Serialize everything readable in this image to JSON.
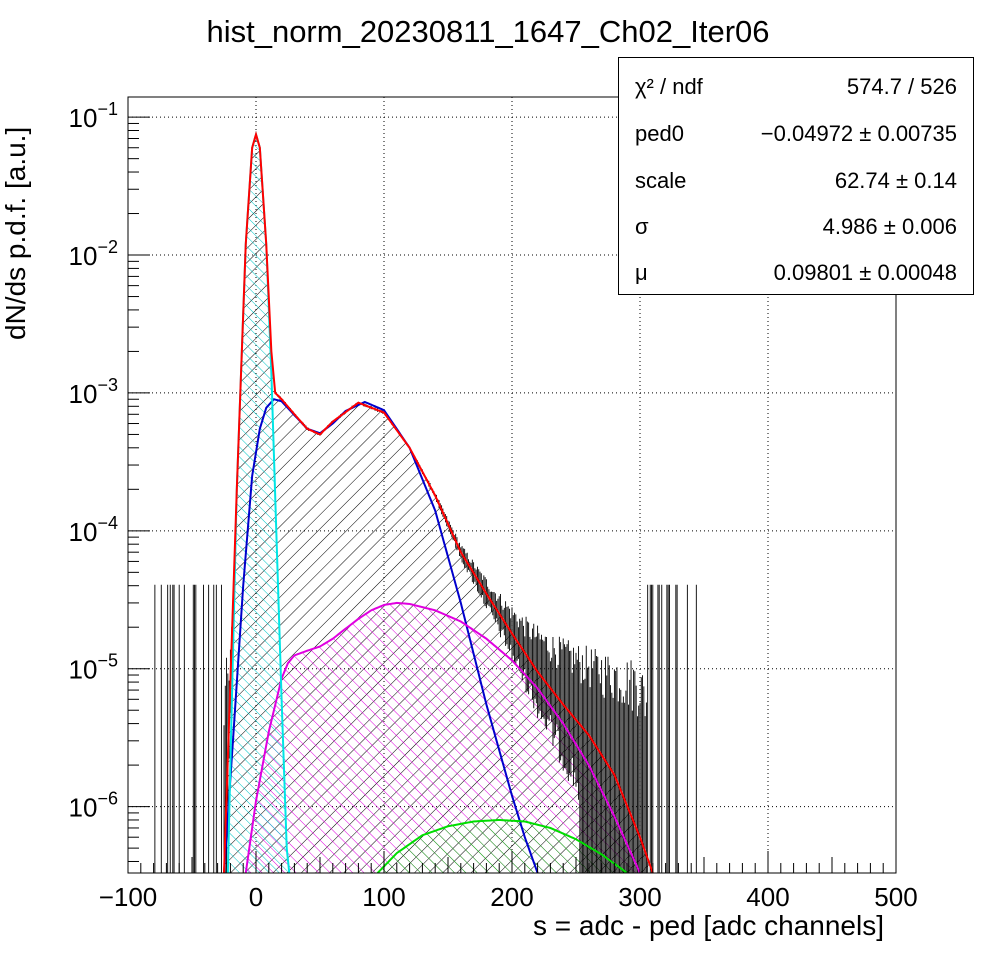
{
  "chart_data": {
    "type": "line",
    "title": "hist_norm_20230811_1647_Ch02_Iter06",
    "xlabel": "s = adc - ped [adc channels]",
    "ylabel": "dN/ds p.d.f. [a.u.]",
    "xlim": [
      -100,
      500
    ],
    "ylim": [
      3.3e-07,
      0.14
    ],
    "yscale": "log",
    "grid": true,
    "x_ticks": [
      "−100",
      "0",
      "100",
      "200",
      "300",
      "400",
      "500"
    ],
    "y_ticks": [
      {
        "base": "10",
        "exp": "−1"
      },
      {
        "base": "10",
        "exp": "−2"
      },
      {
        "base": "10",
        "exp": "−3"
      },
      {
        "base": "10",
        "exp": "−4"
      },
      {
        "base": "10",
        "exp": "−5"
      },
      {
        "base": "10",
        "exp": "−6"
      }
    ],
    "series": [
      {
        "color": "#ff0000",
        "x": [
          -25,
          -15,
          -8,
          -3,
          0,
          3,
          8,
          12,
          15,
          20,
          30,
          40,
          50,
          60,
          80,
          100,
          120,
          140,
          160,
          180,
          200,
          220,
          240,
          260,
          280,
          300,
          310
        ],
        "y": [
          3.3e-07,
          0.0002,
          0.012,
          0.06,
          0.075,
          0.06,
          0.012,
          0.002,
          0.001,
          0.0009,
          0.0007,
          0.00055,
          0.0005,
          0.00062,
          0.00085,
          0.00072,
          0.0004,
          0.00018,
          7e-05,
          3.5e-05,
          1.8e-05,
          9.5e-06,
          5.5e-06,
          3.3e-06,
          1.7e-06,
          6e-07,
          3.3e-07
        ]
      },
      {
        "color": "#00e5e5",
        "x": [
          -22,
          -15,
          -8,
          -3,
          0,
          3,
          8,
          12,
          16,
          20,
          24,
          26
        ],
        "y": [
          3.3e-07,
          0.0002,
          0.012,
          0.06,
          0.075,
          0.06,
          0.012,
          0.0014,
          9e-05,
          6e-06,
          5e-07,
          3.3e-07
        ]
      },
      {
        "color": "#0000cc",
        "x": [
          -25,
          -18,
          -10,
          -3,
          3,
          8,
          14,
          20,
          30,
          40,
          50,
          60,
          70,
          85,
          100,
          120,
          140,
          160,
          180,
          200,
          210,
          220
        ],
        "y": [
          3.3e-07,
          3e-06,
          4e-05,
          0.00025,
          0.00055,
          0.00078,
          0.0009,
          0.00087,
          0.00069,
          0.00055,
          0.00051,
          0.0006,
          0.00074,
          0.00086,
          0.00075,
          0.0004,
          0.00014,
          3e-05,
          5.5e-06,
          1.2e-06,
          6e-07,
          3.3e-07
        ]
      },
      {
        "color": "#e000e0",
        "x": [
          -8,
          0,
          10,
          20,
          25,
          30,
          40,
          50,
          60,
          70,
          80,
          90,
          100,
          110,
          120,
          140,
          160,
          180,
          200,
          220,
          240,
          260,
          280,
          300
        ],
        "y": [
          3.3e-07,
          1.1e-06,
          3.5e-06,
          8.5e-06,
          1.1e-05,
          1.25e-05,
          1.35e-05,
          1.45e-05,
          1.65e-05,
          1.95e-05,
          2.3e-05,
          2.65e-05,
          2.9e-05,
          3e-05,
          2.95e-05,
          2.65e-05,
          2.2e-05,
          1.65e-05,
          1.15e-05,
          7.2e-06,
          4e-06,
          2e-06,
          8.5e-07,
          3.3e-07
        ]
      },
      {
        "color": "#00dd00",
        "x": [
          95,
          110,
          130,
          150,
          170,
          190,
          210,
          230,
          250,
          270,
          290
        ],
        "y": [
          3.3e-07,
          4.6e-07,
          6.2e-07,
          7.2e-07,
          7.8e-07,
          8e-07,
          7.8e-07,
          7e-07,
          5.8e-07,
          4.5e-07,
          3.3e-07
        ]
      }
    ]
  },
  "stats": {
    "rows": [
      {
        "label": "χ² / ndf",
        "value": "574.7 / 526"
      },
      {
        "label": "ped0",
        "value": "−0.04972 ± 0.00735"
      },
      {
        "label": "scale",
        "value": "62.74 ± 0.14"
      },
      {
        "label": "σ",
        "value": "4.986 ± 0.006"
      },
      {
        "label": "μ",
        "value": "0.09801 ± 0.00048"
      }
    ]
  }
}
